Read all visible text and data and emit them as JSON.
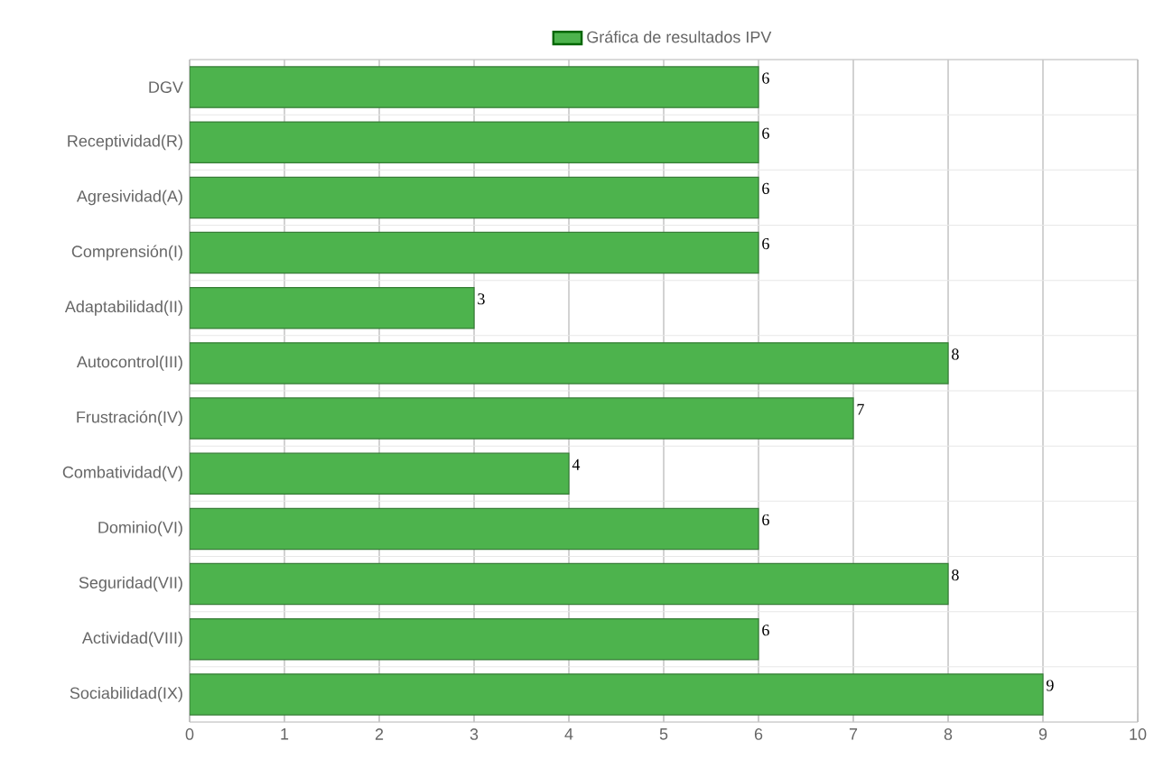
{
  "chart_data": {
    "type": "bar",
    "orientation": "horizontal",
    "categories": [
      "DGV",
      "Receptividad(R)",
      "Agresividad(A)",
      "Comprensión(I)",
      "Adaptabilidad(II)",
      "Autocontrol(III)",
      "Frustración(IV)",
      "Combatividad(V)",
      "Dominio(VI)",
      "Seguridad(VII)",
      "Actividad(VIII)",
      "Sociabilidad(IX)"
    ],
    "series": [
      {
        "name": "Gráfica de resultados IPV",
        "color": "#4db34d",
        "values": [
          6,
          6,
          6,
          6,
          3,
          8,
          7,
          4,
          6,
          8,
          6,
          9
        ]
      }
    ],
    "xlim": [
      0,
      10
    ],
    "xticks": [
      0,
      1,
      2,
      3,
      4,
      5,
      6,
      7,
      8,
      9,
      10
    ],
    "grid": true,
    "legend": "top",
    "data_labels": true
  }
}
